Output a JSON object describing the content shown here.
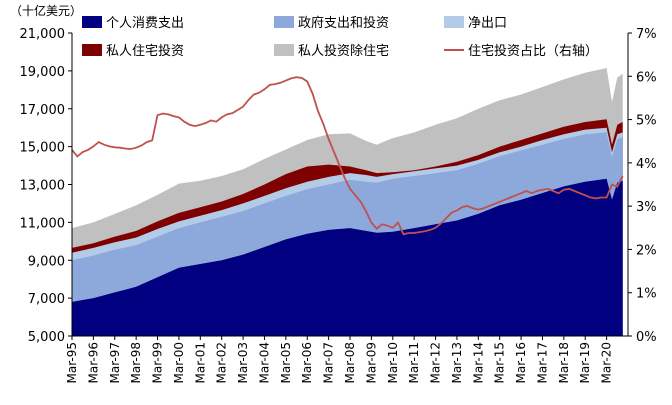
{
  "chart_data": {
    "type": "area",
    "unit_label": "（十亿美元）",
    "left_axis": {
      "min": 5000,
      "max": 21000,
      "ticks": [
        "5,000",
        "7,000",
        "9,000",
        "11,000",
        "13,000",
        "15,000",
        "17,000",
        "19,000",
        "21,000"
      ]
    },
    "right_axis": {
      "min": 0,
      "max": 7,
      "ticks": [
        "0%",
        "1%",
        "2%",
        "3%",
        "4%",
        "5%",
        "6%",
        "7%"
      ]
    },
    "x_labels": [
      "Mar-95",
      "Mar-96",
      "Mar-97",
      "Mar-98",
      "Mar-99",
      "Mar-00",
      "Mar-01",
      "Mar-02",
      "Mar-03",
      "Mar-04",
      "Mar-05",
      "Mar-06",
      "Mar-07",
      "Mar-08",
      "Mar-09",
      "Mar-10",
      "Mar-11",
      "Mar-12",
      "Mar-13",
      "Mar-14",
      "Mar-15",
      "Mar-16",
      "Mar-17",
      "Mar-18",
      "Mar-19",
      "Mar-20"
    ],
    "x_range": [
      1995,
      2021
    ],
    "legend": {
      "position": "top",
      "items": [
        {
          "name": "个人消费支出",
          "color": "#000080",
          "kind": "area"
        },
        {
          "name": "政府支出和投资",
          "color": "#8DA9DB",
          "kind": "area"
        },
        {
          "name": "净出口",
          "color": "#B4CBE8",
          "kind": "area"
        },
        {
          "name": "私人住宅投资",
          "color": "#7F0000",
          "kind": "area"
        },
        {
          "name": "私人投资除住宅",
          "color": "#C0C0C0",
          "kind": "area"
        },
        {
          "name": "住宅投资占比（右轴）",
          "color": "#C0504D",
          "kind": "line"
        }
      ]
    },
    "stacked_cumulative": {
      "x": [
        1995.0,
        1996.0,
        1997.0,
        1998.0,
        1999.0,
        2000.0,
        2001.0,
        2002.0,
        2003.0,
        2004.0,
        2005.0,
        2006.0,
        2007.0,
        2008.0,
        2008.75,
        2009.25,
        2010.0,
        2011.0,
        2012.0,
        2013.0,
        2014.0,
        2015.0,
        2016.0,
        2017.0,
        2018.0,
        2019.0,
        2020.0,
        2020.25,
        2020.5,
        2020.75
      ],
      "series": [
        {
          "name": "个人消费支出",
          "values": [
            6800,
            7000,
            7300,
            7600,
            8100,
            8600,
            8800,
            9000,
            9300,
            9700,
            10100,
            10400,
            10600,
            10700,
            10550,
            10450,
            10500,
            10700,
            10900,
            11100,
            11450,
            11900,
            12200,
            12550,
            12900,
            13150,
            13300,
            12200,
            13100,
            13200
          ]
        },
        {
          "name": "政府支出和投资",
          "values": [
            9000,
            9250,
            9550,
            9800,
            10250,
            10700,
            11000,
            11300,
            11600,
            12000,
            12400,
            12750,
            13000,
            13250,
            13150,
            13100,
            13300,
            13450,
            13600,
            13750,
            14100,
            14500,
            14800,
            15100,
            15400,
            15650,
            15750,
            14450,
            15400,
            15500
          ]
        },
        {
          "name": "净出口",
          "values": [
            9400,
            9650,
            9950,
            10200,
            10650,
            11050,
            11350,
            11650,
            12000,
            12400,
            12800,
            13150,
            13400,
            13600,
            13500,
            13400,
            13550,
            13700,
            13850,
            14000,
            14300,
            14700,
            15000,
            15350,
            15650,
            15900,
            16000,
            14700,
            15650,
            15750
          ]
        },
        {
          "name": "私人住宅投资",
          "values": [
            9650,
            9900,
            10250,
            10550,
            11050,
            11500,
            11800,
            12100,
            12500,
            13000,
            13550,
            13950,
            14050,
            13950,
            13750,
            13600,
            13650,
            13750,
            13950,
            14200,
            14550,
            15000,
            15350,
            15700,
            16050,
            16300,
            16450,
            15100,
            16150,
            16300
          ]
        },
        {
          "name": "私人投资除住宅",
          "values": [
            10700,
            11000,
            11450,
            11900,
            12450,
            13050,
            13200,
            13450,
            13800,
            14350,
            14850,
            15350,
            15650,
            15700,
            15300,
            15100,
            15450,
            15750,
            16150,
            16500,
            17000,
            17450,
            17750,
            18150,
            18550,
            18900,
            19150,
            17350,
            18650,
            18850
          ]
        }
      ]
    },
    "share_line": {
      "name": "住宅投资占比（右轴）",
      "x": [
        1995.0,
        1995.25,
        1995.5,
        1995.75,
        1996.0,
        1996.25,
        1996.5,
        1996.75,
        1997.0,
        1997.25,
        1997.5,
        1997.75,
        1998.0,
        1998.25,
        1998.5,
        1998.75,
        1999.0,
        1999.25,
        1999.5,
        1999.75,
        2000.0,
        2000.25,
        2000.5,
        2000.75,
        2001.0,
        2001.25,
        2001.5,
        2001.75,
        2002.0,
        2002.25,
        2002.5,
        2002.75,
        2003.0,
        2003.25,
        2003.5,
        2003.75,
        2004.0,
        2004.25,
        2004.5,
        2004.75,
        2005.0,
        2005.25,
        2005.5,
        2005.75,
        2006.0,
        2006.25,
        2006.5,
        2006.75,
        2007.0,
        2007.25,
        2007.5,
        2007.75,
        2008.0,
        2008.25,
        2008.5,
        2008.75,
        2009.0,
        2009.25,
        2009.5,
        2009.75,
        2010.0,
        2010.25,
        2010.5,
        2010.75,
        2011.0,
        2011.25,
        2011.5,
        2011.75,
        2012.0,
        2012.25,
        2012.5,
        2012.75,
        2013.0,
        2013.25,
        2013.5,
        2013.75,
        2014.0,
        2014.25,
        2014.5,
        2014.75,
        2015.0,
        2015.25,
        2015.5,
        2015.75,
        2016.0,
        2016.25,
        2016.5,
        2016.75,
        2017.0,
        2017.25,
        2017.5,
        2017.75,
        2018.0,
        2018.25,
        2018.5,
        2018.75,
        2019.0,
        2019.25,
        2019.5,
        2019.75,
        2020.0,
        2020.25,
        2020.5,
        2020.75
      ],
      "values": [
        4.3,
        4.15,
        4.25,
        4.3,
        4.38,
        4.48,
        4.42,
        4.38,
        4.36,
        4.35,
        4.33,
        4.32,
        4.35,
        4.4,
        4.48,
        4.52,
        5.1,
        5.14,
        5.12,
        5.08,
        5.05,
        4.95,
        4.88,
        4.85,
        4.88,
        4.92,
        4.98,
        4.95,
        5.05,
        5.12,
        5.15,
        5.22,
        5.3,
        5.45,
        5.58,
        5.62,
        5.7,
        5.8,
        5.82,
        5.85,
        5.9,
        5.95,
        5.98,
        5.96,
        5.88,
        5.6,
        5.2,
        4.9,
        4.55,
        4.25,
        3.95,
        3.65,
        3.4,
        3.25,
        3.1,
        2.88,
        2.62,
        2.48,
        2.58,
        2.55,
        2.5,
        2.62,
        2.35,
        2.38,
        2.38,
        2.4,
        2.42,
        2.45,
        2.5,
        2.6,
        2.72,
        2.85,
        2.9,
        2.98,
        3.0,
        2.95,
        2.92,
        2.95,
        3.0,
        3.05,
        3.1,
        3.15,
        3.2,
        3.25,
        3.3,
        3.35,
        3.3,
        3.35,
        3.38,
        3.4,
        3.35,
        3.3,
        3.38,
        3.4,
        3.35,
        3.3,
        3.25,
        3.2,
        3.18,
        3.2,
        3.2,
        3.5,
        3.45,
        3.7
      ]
    }
  }
}
